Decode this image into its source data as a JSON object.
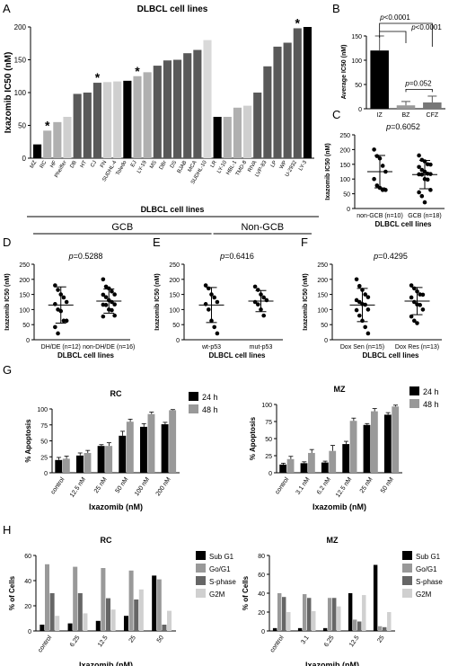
{
  "panel_letters": [
    "A",
    "B",
    "C",
    "D",
    "E",
    "F",
    "G",
    "H"
  ],
  "chart_data": [
    {
      "panel": "A",
      "type": "bar",
      "title": "DLBCL cell lines",
      "ylabel": "Ixazomib IC50 (nM)",
      "xlabel": "DLBCL cell lines",
      "ylim": [
        0,
        200
      ],
      "yticks": [
        0,
        50,
        100,
        150,
        200
      ],
      "categories": [
        "MZ",
        "RC",
        "HF",
        "Pheiffer",
        "DB",
        "HT",
        "CJ",
        "FN",
        "SUDHL-4",
        "Toledo",
        "EJ",
        "LY-19",
        "MS",
        "DBr",
        "DS",
        "BJAB",
        "MCA",
        "SUDHL-10",
        "LR",
        "LY-10",
        "HBL-1",
        "TMD-8",
        "RIVA",
        "LVP-83",
        "LP",
        "WP",
        "U-2932",
        "LY-3"
      ],
      "values": [
        21,
        42,
        55,
        63,
        98,
        100,
        115,
        116,
        117,
        118,
        125,
        131,
        141,
        149,
        150,
        160,
        165,
        180,
        63,
        63,
        77,
        80,
        100,
        140,
        170,
        176,
        198,
        200
      ],
      "colors": [
        "#000000",
        "#b0b0b0",
        "#b0b0b0",
        "#cfcfcf",
        "#595959",
        "#595959",
        "#595959",
        "#cfcfcf",
        "#cfcfcf",
        "#000000",
        "#b0b0b0",
        "#b0b0b0",
        "#595959",
        "#595959",
        "#595959",
        "#595959",
        "#595959",
        "#d9d9d9",
        "#000000",
        "#b0b0b0",
        "#b0b0b0",
        "#cfcfcf",
        "#595959",
        "#595959",
        "#595959",
        "#595959",
        "#595959",
        "#000000"
      ],
      "star_categories": [
        "RC",
        "CJ",
        "EJ",
        "U-2932"
      ],
      "groups": [
        {
          "label": "GCB",
          "from": 0,
          "to": 17
        },
        {
          "label": "Non-GCB",
          "from": 18,
          "to": 27
        }
      ]
    },
    {
      "panel": "B",
      "type": "bar",
      "ylabel": "Average IC50 (nM)",
      "ylim": [
        0,
        150
      ],
      "yticks": [
        0,
        50,
        100,
        150
      ],
      "categories": [
        "IZ",
        "BZ",
        "CFZ"
      ],
      "values": [
        120,
        7,
        13
      ],
      "errors": [
        30,
        8,
        13
      ],
      "colors": [
        "#000000",
        "#999999",
        "#777777"
      ],
      "annotations": [
        {
          "text": "p<0.0001"
        },
        {
          "text": "p<0.0001"
        },
        {
          "text": "p=0.052"
        }
      ]
    },
    {
      "panel": "C",
      "type": "scatter",
      "ylabel": "Ixazomib IC50 (nM)",
      "xlabel": "DLBCL cell lines",
      "ylim": [
        0,
        250
      ],
      "yticks": [
        0,
        50,
        100,
        150,
        200,
        250
      ],
      "pvalue": "p=0.6052",
      "groups": [
        {
          "name": "non-GCB (n=10)",
          "mean": 125,
          "sd": 55,
          "values": [
            200,
            178,
            170,
            145,
            125,
            100,
            78,
            70,
            63,
            63
          ]
        },
        {
          "name": "GCB (n=18)",
          "mean": 115,
          "sd": 48,
          "values": [
            180,
            165,
            160,
            150,
            149,
            141,
            131,
            125,
            118,
            117,
            116,
            115,
            100,
            98,
            63,
            55,
            42,
            21
          ]
        }
      ]
    },
    {
      "panel": "D",
      "type": "scatter",
      "ylabel": "Ixazomib IC50 (nM)",
      "xlabel": "DLBCL cell lines",
      "ylim": [
        0,
        250
      ],
      "yticks": [
        0,
        50,
        100,
        150,
        200,
        250
      ],
      "pvalue": "p=0.5288",
      "groups": [
        {
          "name": "DH/DE (n=12)",
          "mean": 115,
          "sd": 60,
          "values": [
            180,
            165,
            150,
            140,
            125,
            118,
            100,
            95,
            63,
            63,
            42,
            21
          ]
        },
        {
          "name": "non-DH/DE (n=16)",
          "mean": 128,
          "sd": 40,
          "values": [
            200,
            176,
            170,
            160,
            150,
            149,
            141,
            131,
            125,
            117,
            116,
            115,
            100,
            98,
            80,
            77
          ]
        }
      ]
    },
    {
      "panel": "E",
      "type": "scatter",
      "ylabel": "Ixazomib IC50 (nM)",
      "xlabel": "DLBCL cell lines",
      "ylim": [
        0,
        250
      ],
      "yticks": [
        0,
        50,
        100,
        150,
        200,
        250
      ],
      "pvalue": "p=0.6416",
      "groups": [
        {
          "name": "wt-p53",
          "mean": 115,
          "sd": 58,
          "values": [
            180,
            170,
            150,
            140,
            125,
            118,
            100,
            63,
            42,
            21
          ]
        },
        {
          "name": "mut-p53",
          "mean": 128,
          "sd": 35,
          "values": [
            176,
            165,
            150,
            140,
            131,
            125,
            117,
            100,
            80
          ]
        }
      ]
    },
    {
      "panel": "F",
      "type": "scatter",
      "ylabel": "Ixazomib IC50 (nM)",
      "xlabel": "DLBCL cell lines",
      "ylim": [
        0,
        250
      ],
      "yticks": [
        0,
        50,
        100,
        150,
        200,
        250
      ],
      "pvalue": "p=0.4295",
      "groups": [
        {
          "name": "Dox Sen (n=15)",
          "mean": 115,
          "sd": 55,
          "values": [
            200,
            178,
            165,
            150,
            141,
            131,
            125,
            118,
            116,
            100,
            98,
            80,
            63,
            42,
            21
          ]
        },
        {
          "name": "Dox Res (n=13)",
          "mean": 128,
          "sd": 45,
          "values": [
            180,
            170,
            160,
            150,
            149,
            140,
            125,
            117,
            115,
            100,
            77,
            63,
            55
          ]
        }
      ]
    },
    {
      "panel": "G",
      "type": "bar",
      "title": "RC",
      "ylabel": "% Apoptosis",
      "xlabel": "Ixazomib (nM)",
      "ylim": [
        0,
        100
      ],
      "yticks": [
        0,
        25,
        50,
        75,
        100
      ],
      "categories": [
        "control",
        "12.5 nM",
        "25 nM",
        "50 nM",
        "100 nM",
        "200 nM"
      ],
      "series": [
        {
          "name": "24 h",
          "color": "#000000",
          "values": [
            20,
            27,
            42,
            58,
            72,
            76
          ],
          "errors": [
            4,
            4,
            2,
            7,
            5,
            3
          ]
        },
        {
          "name": "48 h",
          "color": "#999999",
          "values": [
            22,
            31,
            42,
            80,
            92,
            98
          ],
          "errors": [
            4,
            4,
            5,
            4,
            3,
            1
          ]
        }
      ]
    },
    {
      "panel": "G",
      "type": "bar",
      "title": "MZ",
      "ylabel": "% Apoptosis",
      "xlabel": "Ixazomib (nM)",
      "ylim": [
        0,
        100
      ],
      "yticks": [
        0,
        25,
        50,
        75,
        100
      ],
      "categories": [
        "control",
        "3.1 nM",
        "6.2 nM",
        "12.5 nM",
        "25 nM",
        "50 nM"
      ],
      "series": [
        {
          "name": "24 h",
          "color": "#000000",
          "values": [
            12,
            14,
            15,
            42,
            70,
            85
          ],
          "errors": [
            2,
            2,
            2,
            4,
            2,
            3
          ]
        },
        {
          "name": "48 h",
          "color": "#999999",
          "values": [
            20,
            29,
            32,
            76,
            90,
            97
          ],
          "errors": [
            4,
            5,
            8,
            4,
            4,
            2
          ]
        }
      ]
    },
    {
      "panel": "H",
      "type": "bar",
      "title": "RC",
      "ylabel": "% of Cells",
      "xlabel": "Ixazomib (nM)",
      "ylim": [
        0,
        60
      ],
      "yticks": [
        0,
        20,
        40,
        60
      ],
      "categories": [
        "control",
        "6.25",
        "12.5",
        "25",
        "50"
      ],
      "series": [
        {
          "name": "Sub G1",
          "color": "#000000",
          "values": [
            5,
            6,
            8,
            12,
            44
          ]
        },
        {
          "name": "Go/G1",
          "color": "#999999",
          "values": [
            53,
            51,
            50,
            48,
            41
          ]
        },
        {
          "name": "S-phase",
          "color": "#666666",
          "values": [
            30,
            30,
            26,
            25,
            5
          ]
        },
        {
          "name": "G2M",
          "color": "#d0d0d0",
          "values": [
            12,
            14,
            17,
            33,
            16
          ]
        }
      ]
    },
    {
      "panel": "H",
      "type": "bar",
      "title": "MZ",
      "ylabel": "% of Cells",
      "xlabel": "Ixazomib (nM)",
      "ylim": [
        0,
        80
      ],
      "yticks": [
        0,
        20,
        40,
        60,
        80
      ],
      "categories": [
        "control",
        "3.1",
        "6.25",
        "12.5",
        "25"
      ],
      "series": [
        {
          "name": "Sub G1",
          "color": "#000000",
          "values": [
            3,
            3,
            3,
            40,
            70
          ]
        },
        {
          "name": "Go/G1",
          "color": "#999999",
          "values": [
            40,
            39,
            35,
            12,
            5
          ]
        },
        {
          "name": "S-phase",
          "color": "#666666",
          "values": [
            36,
            35,
            35,
            10,
            4
          ]
        },
        {
          "name": "G2M",
          "color": "#d0d0d0",
          "values": [
            20,
            21,
            26,
            38,
            20
          ]
        }
      ]
    }
  ]
}
